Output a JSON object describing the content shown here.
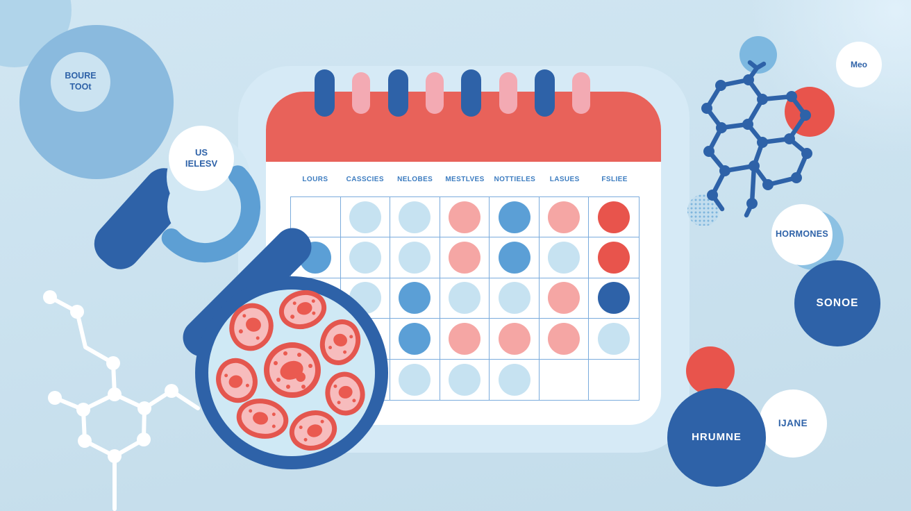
{
  "palette": {
    "bg-top": "#d1e6f2",
    "bg-bottom": "#c3dcea",
    "halo": "#d6eaf6",
    "navy": "#2e62a8",
    "mid-blue": "#5d9fd4",
    "sky": "#8abade",
    "soft-blue": "#7db8e0",
    "corner-blue": "#b0d4ea",
    "pale-blue": "#cbe3f1",
    "pale-panel": "#d2e8f4",
    "dot-light": "#c6e2f1",
    "dot-mid": "#5b9fd6",
    "dot-pink": "#f5a6a4",
    "dot-red": "#e8544c",
    "cal-red": "#e8625a",
    "pill-pink": "#f3aab3",
    "grid-line": "#7aabdc",
    "lens-fill": "#cfe9f5",
    "cell-fill": "#f7bcbd",
    "cell-border": "#e4564e",
    "cell-nucleus": "#ea5a50",
    "text-blue": "#2e62a8",
    "label-blue": "#3c7cc0",
    "crescent": "#8cc1e3"
  },
  "top_left_bubble": {
    "text": "BOURE\nTOOt"
  },
  "satellite_bubble": {
    "text": "US\nIELESV"
  },
  "calendar": {
    "day_headers": [
      "LOURS",
      "CASSCIES",
      "NELOBES",
      "MESTLVES",
      "NOTTIELES",
      "LASUES",
      "FSLIEE"
    ],
    "rings": [
      "navy",
      "pink",
      "navy",
      "pink",
      "navy",
      "pink",
      "navy",
      "pink"
    ],
    "grid": [
      [
        null,
        "light",
        "light",
        "pink",
        "mid",
        "pink",
        "red"
      ],
      [
        "mid",
        "light",
        "light",
        "pink",
        "mid",
        "light",
        "red"
      ],
      [
        null,
        "light",
        "mid",
        "light",
        "light",
        "pink",
        "navy"
      ],
      [
        null,
        null,
        "mid",
        "pink",
        "pink",
        "pink",
        "light"
      ],
      [
        null,
        null,
        "light",
        "light",
        "light",
        null,
        null
      ]
    ]
  },
  "bubbles_right": {
    "meo": "Meo",
    "hormones": "HORMONES",
    "sonoe": "SONOE",
    "hrumne": "HRUMNE",
    "ijane": "IJANE"
  }
}
